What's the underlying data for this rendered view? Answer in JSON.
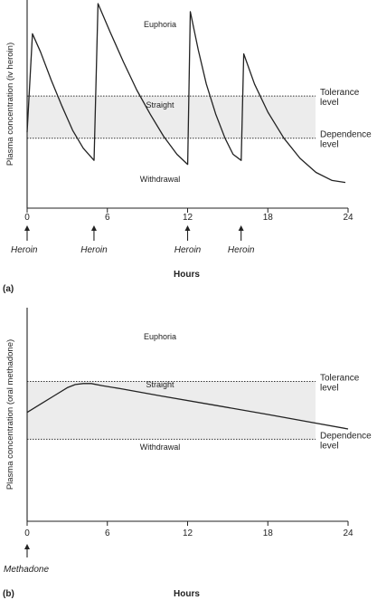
{
  "chart_data": [
    {
      "panel_label": "(a)",
      "type": "line",
      "xlabel": "Hours",
      "ylabel": "Plasma concentration (iv heroin)",
      "xlim": [
        0,
        24
      ],
      "ylim": [
        0,
        100
      ],
      "x_ticks": [
        0,
        6,
        12,
        18,
        24
      ],
      "bands": {
        "tolerance_level": 54,
        "dependence_level": 33
      },
      "level_labels": {
        "tolerance": [
          "Tolerance",
          "level"
        ],
        "dependence": [
          "Dependence",
          "level"
        ]
      },
      "zones": [
        "Euphoria",
        "Straight",
        "Withdrawal"
      ],
      "doses": [
        {
          "label": "Heroin",
          "x": 0
        },
        {
          "label": "Heroin",
          "x": 5
        },
        {
          "label": "Heroin",
          "x": 12
        },
        {
          "label": "Heroin",
          "x": 16
        }
      ],
      "series": [
        {
          "x": [
            0,
            0.4,
            1,
            1.8,
            2.6,
            3.4,
            4.2,
            5,
            5.01,
            5.3,
            6.2,
            7.2,
            8.2,
            9.2,
            10.2,
            11.2,
            12,
            12.01,
            12.2,
            12.8,
            13.4,
            14.1,
            14.8,
            15.4,
            16,
            16.01,
            16.2,
            17,
            18,
            19.2,
            20.4,
            21.6,
            22.8,
            23.8
          ],
          "y": [
            36,
            85,
            76,
            62,
            49,
            37,
            28,
            22,
            23,
            100,
            86,
            71,
            57,
            45,
            34,
            25,
            20,
            20,
            96,
            77,
            60,
            45,
            33,
            25,
            22,
            22,
            75,
            60,
            46,
            33,
            23,
            16,
            12,
            11
          ]
        }
      ]
    },
    {
      "panel_label": "(b)",
      "type": "line",
      "xlabel": "Hours",
      "ylabel": "Plasma concentration (oral methadone)",
      "xlim": [
        0,
        24
      ],
      "ylim": [
        0,
        100
      ],
      "x_ticks": [
        0,
        6,
        12,
        18,
        24
      ],
      "bands": {
        "tolerance_level": 66,
        "dependence_level": 38
      },
      "level_labels": {
        "tolerance": [
          "Tolerance",
          "level"
        ],
        "dependence": [
          "Dependence",
          "level"
        ]
      },
      "zones": [
        "Euphoria",
        "Straight",
        "Withdrawal"
      ],
      "doses": [
        {
          "label": "Methadone",
          "x": 0
        }
      ],
      "series": [
        {
          "x": [
            0,
            1,
            2,
            3,
            3.6,
            4.2,
            4.8,
            5.6,
            7,
            10,
            14,
            18,
            21,
            24
          ],
          "y": [
            51,
            55,
            59,
            63,
            64.5,
            65,
            65,
            64,
            62.5,
            59,
            54.5,
            50,
            46.5,
            43
          ]
        }
      ]
    }
  ]
}
